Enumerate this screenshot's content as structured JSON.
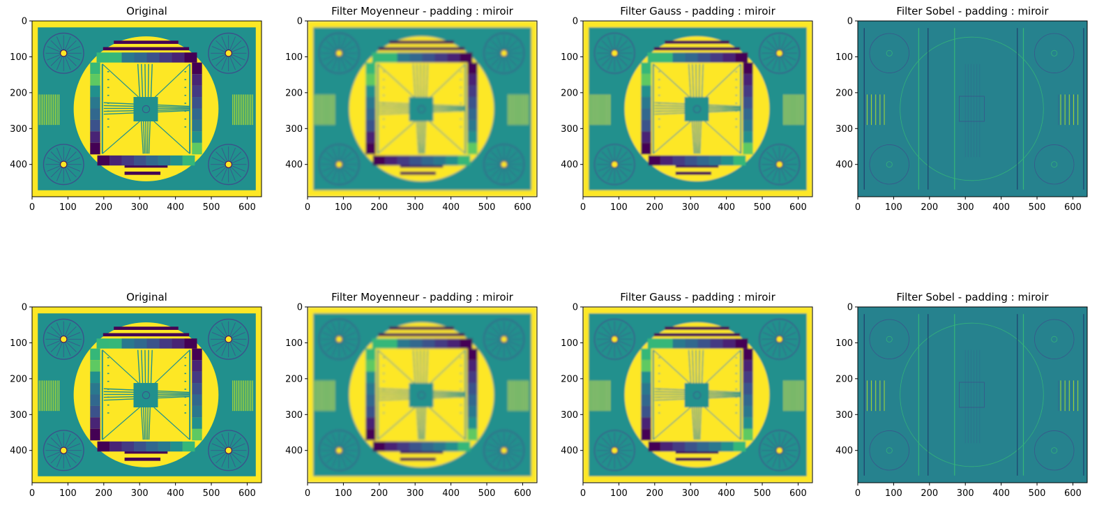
{
  "figure": {
    "rows": 2,
    "cols": 4,
    "colormap": "viridis"
  },
  "chart_data": [
    {
      "type": "heatmap",
      "title": "Original",
      "filter": "none",
      "xticks": [
        0,
        100,
        200,
        300,
        400,
        500,
        600
      ],
      "yticks": [
        0,
        100,
        200,
        300,
        400
      ],
      "xlim": [
        0,
        640
      ],
      "ylim": [
        490,
        0
      ]
    },
    {
      "type": "heatmap",
      "title": "Filter Moyenneur - padding : miroir",
      "filter": "mean",
      "xticks": [
        0,
        100,
        200,
        300,
        400,
        500,
        600
      ],
      "yticks": [
        0,
        100,
        200,
        300,
        400
      ],
      "xlim": [
        0,
        640
      ],
      "ylim": [
        490,
        0
      ]
    },
    {
      "type": "heatmap",
      "title": "Filter Gauss - padding : miroir",
      "filter": "gauss",
      "xticks": [
        0,
        100,
        200,
        300,
        400,
        500,
        600
      ],
      "yticks": [
        0,
        100,
        200,
        300,
        400
      ],
      "xlim": [
        0,
        640
      ],
      "ylim": [
        490,
        0
      ]
    },
    {
      "type": "heatmap",
      "title": "Filter Sobel - padding : miroir",
      "filter": "sobel",
      "xticks": [
        0,
        100,
        200,
        300,
        400,
        500,
        600
      ],
      "yticks": [
        0,
        100,
        200,
        300,
        400
      ],
      "xlim": [
        0,
        640
      ],
      "ylim": [
        490,
        0
      ]
    },
    {
      "type": "heatmap",
      "title": "Original",
      "filter": "none",
      "xticks": [
        0,
        100,
        200,
        300,
        400,
        500,
        600
      ],
      "yticks": [
        0,
        100,
        200,
        300,
        400
      ],
      "xlim": [
        0,
        640
      ],
      "ylim": [
        490,
        0
      ]
    },
    {
      "type": "heatmap",
      "title": "Filter Moyenneur - padding : miroir",
      "filter": "mean",
      "xticks": [
        0,
        100,
        200,
        300,
        400,
        500,
        600
      ],
      "yticks": [
        0,
        100,
        200,
        300,
        400
      ],
      "xlim": [
        0,
        640
      ],
      "ylim": [
        490,
        0
      ]
    },
    {
      "type": "heatmap",
      "title": "Filter Gauss - padding : miroir",
      "filter": "gauss",
      "xticks": [
        0,
        100,
        200,
        300,
        400,
        500,
        600
      ],
      "yticks": [
        0,
        100,
        200,
        300,
        400
      ],
      "xlim": [
        0,
        640
      ],
      "ylim": [
        490,
        0
      ]
    },
    {
      "type": "heatmap",
      "title": "Filter Sobel - padding : miroir",
      "filter": "sobel",
      "xticks": [
        0,
        100,
        200,
        300,
        400,
        500,
        600
      ],
      "yticks": [
        0,
        100,
        200,
        300,
        400
      ],
      "xlim": [
        0,
        640
      ],
      "ylim": [
        490,
        0
      ]
    }
  ],
  "colors": {
    "viridis_high": "#fde725",
    "viridis_mid": "#21908d",
    "viridis_teal": "#2a788e",
    "viridis_low": "#440154",
    "viridis_blue": "#3b528b",
    "viridis_green": "#35b779",
    "sobel_bg": "#26828e"
  }
}
